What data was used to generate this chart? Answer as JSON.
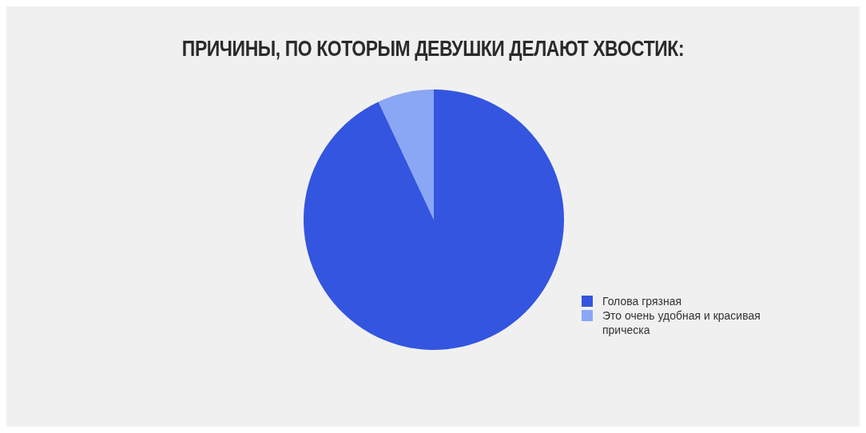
{
  "chart_data": {
    "type": "pie",
    "title": "ПРИЧИНЫ, ПО КОТОРЫМ ДЕВУШКИ ДЕЛАЮТ ХВОСТИК:",
    "categories": [
      "Это очень удобная и красивая прическа",
      "Голова грязная"
    ],
    "values": [
      7,
      93
    ],
    "colors": [
      "#8aa7f5",
      "#3355e0"
    ],
    "legend": "right"
  }
}
